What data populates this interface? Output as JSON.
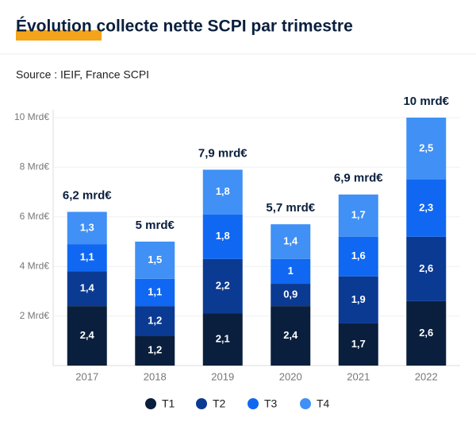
{
  "chart_data": {
    "type": "stacked_bar",
    "title": "Évolution collecte nette SCPI par trimestre",
    "subtitle": "Source : IEIF, France SCPI",
    "categories": [
      "2017",
      "2018",
      "2019",
      "2020",
      "2021",
      "2022"
    ],
    "series": [
      {
        "name": "T1",
        "color": "#0a1f3d",
        "values": [
          2.4,
          1.2,
          2.1,
          2.4,
          1.7,
          2.6
        ],
        "value_labels": [
          "2,4",
          "1,2",
          "2,1",
          "2,4",
          "1,7",
          "2,6"
        ]
      },
      {
        "name": "T2",
        "color": "#0b3a93",
        "values": [
          1.4,
          1.2,
          2.2,
          0.9,
          1.9,
          2.6
        ],
        "value_labels": [
          "1,4",
          "1,2",
          "2,2",
          "0,9",
          "1,9",
          "2,6"
        ]
      },
      {
        "name": "T3",
        "color": "#1068f2",
        "values": [
          1.1,
          1.1,
          1.8,
          1,
          1.6,
          2.3
        ],
        "value_labels": [
          "1,1",
          "1,1",
          "1,8",
          "1",
          "1,6",
          "2,3"
        ]
      },
      {
        "name": "T4",
        "color": "#4090f5",
        "values": [
          1.3,
          1.5,
          1.8,
          1.4,
          1.7,
          2.5
        ],
        "value_labels": [
          "1,3",
          "1,5",
          "1,8",
          "1,4",
          "1,7",
          "2,5"
        ]
      }
    ],
    "totals": {
      "values": [
        6.2,
        5,
        7.9,
        5.7,
        6.9,
        10
      ],
      "value_labels": [
        "6,2 mrd€",
        "5 mrd€",
        "7,9 mrd€",
        "5,7 mrd€",
        "6,9 mrd€",
        "10 mrd€"
      ]
    },
    "ylim": [
      0,
      10
    ],
    "yticks": [
      {
        "value": 2,
        "label": "2 Mrd€"
      },
      {
        "value": 4,
        "label": "4 Mrd€"
      },
      {
        "value": 6,
        "label": "6 Mrd€"
      },
      {
        "value": 8,
        "label": "8 Mrd€"
      },
      {
        "value": 10,
        "label": "10 Mrd€"
      }
    ],
    "grid": true
  }
}
